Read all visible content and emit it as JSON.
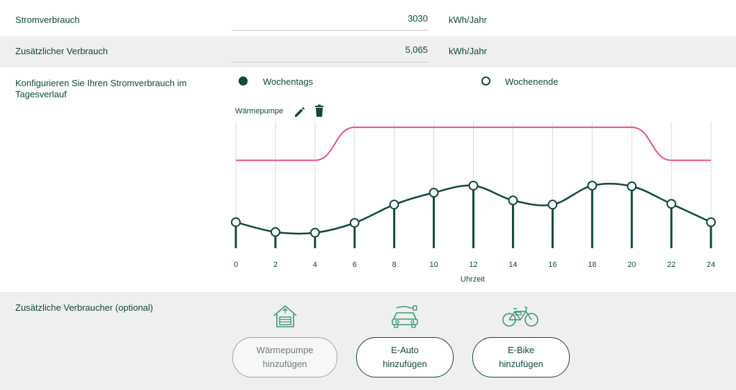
{
  "consumption": {
    "label": "Stromverbrauch",
    "value": "3030",
    "unit": "kWh/Jahr"
  },
  "additional": {
    "label": "Zusätzlicher Verbrauch",
    "value": "5,065",
    "unit": "kWh/Jahr"
  },
  "configure": {
    "label": "Konfigurieren Sie Ihren Stromverbrauch im Tagesverlauf",
    "weekday_label": "Wochentags",
    "weekend_label": "Wochenende",
    "selected": "weekday"
  },
  "device": {
    "name": "Wärmepumpe",
    "edit_icon": "pencil-icon",
    "delete_icon": "trash-icon"
  },
  "chart_data": {
    "type": "line",
    "x": [
      0,
      2,
      4,
      6,
      8,
      10,
      12,
      14,
      16,
      18,
      20,
      22,
      24
    ],
    "xlabel": "Uhrzeit",
    "tick_labels": [
      "0",
      "2",
      "4",
      "6",
      "8",
      "10",
      "12",
      "14",
      "16",
      "18",
      "20",
      "22",
      "24"
    ],
    "series": [
      {
        "values": [
          0.37,
          0.23,
          0.22,
          0.36,
          0.62,
          0.79,
          0.89,
          0.68,
          0.62,
          0.89,
          0.88,
          0.63,
          0.37
        ],
        "color": "#0f4a33"
      },
      {
        "values": [
          1.25,
          1.25,
          1.25,
          1.72,
          1.72,
          1.72,
          1.72,
          1.72,
          1.72,
          1.72,
          1.72,
          1.25,
          1.25
        ],
        "color": "#e8507e"
      }
    ],
    "ylim": [
      0,
      1.8
    ],
    "grid": true
  },
  "optional": {
    "label": "Zusätzliche Verbraucher (optional)",
    "buttons": [
      {
        "label": "Wärmepumpe\nhinzufügen",
        "icon": "house-heatpump-icon",
        "disabled": true
      },
      {
        "label": "E-Auto\nhinzufügen",
        "icon": "electric-car-icon",
        "disabled": false
      },
      {
        "label": "E-Bike\nhinzufügen",
        "icon": "ebike-icon",
        "disabled": false
      }
    ]
  },
  "colors": {
    "accent": "#0f4a33",
    "pink": "#e8507e",
    "shade": "#efefef"
  }
}
